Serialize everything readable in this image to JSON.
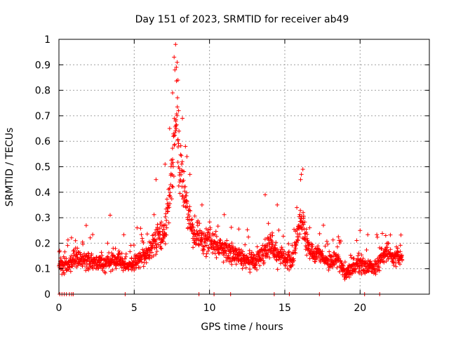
{
  "chart_data": {
    "type": "scatter",
    "title": "Day 151 of 2023, SRMTID for receiver ab49",
    "xlabel": "GPS time / hours",
    "ylabel": "SRMTID / TECUs",
    "xlim": [
      0,
      24.6
    ],
    "ylim": [
      0,
      1
    ],
    "xticks": [
      0,
      5,
      10,
      15,
      20
    ],
    "xtick_labels": [
      "0",
      "5",
      "10",
      "15",
      "20"
    ],
    "yticks": [
      0,
      0.1,
      0.2,
      0.3,
      0.4,
      0.5,
      0.6,
      0.7,
      0.8,
      0.9,
      1
    ],
    "ytick_labels": [
      "0",
      "0.1",
      "0.2",
      "0.3",
      "0.4",
      "0.5",
      "0.6",
      "0.7",
      "0.8",
      "0.9",
      "1"
    ],
    "grid": true,
    "marker": "+",
    "color": "#ff0000",
    "series": [
      {
        "name": "SRMTID",
        "envelope_x": [
          0,
          0.5,
          1,
          2,
          3,
          4,
          4.5,
          5,
          5.5,
          6,
          6.5,
          7,
          7.3,
          7.6,
          7.8,
          8,
          8.3,
          8.6,
          9,
          9.5,
          10,
          10.5,
          11,
          11.5,
          12,
          12.5,
          13,
          13.5,
          14,
          14.5,
          15,
          15.5,
          15.8,
          16.1,
          16.4,
          17,
          17.5,
          18,
          18.5,
          19,
          19.5,
          20,
          20.5,
          21,
          21.5,
          22,
          22.5,
          22.8
        ],
        "envelope_y": [
          0.13,
          0.11,
          0.14,
          0.13,
          0.12,
          0.14,
          0.11,
          0.12,
          0.15,
          0.17,
          0.21,
          0.24,
          0.35,
          0.55,
          0.72,
          0.5,
          0.42,
          0.3,
          0.22,
          0.2,
          0.22,
          0.19,
          0.18,
          0.16,
          0.15,
          0.13,
          0.12,
          0.16,
          0.2,
          0.15,
          0.14,
          0.13,
          0.22,
          0.3,
          0.2,
          0.16,
          0.15,
          0.13,
          0.14,
          0.08,
          0.1,
          0.13,
          0.11,
          0.1,
          0.15,
          0.16,
          0.15,
          0.13
        ],
        "points_count": 1700,
        "highlights": [
          [
            0.05,
            0.17
          ],
          [
            1.1,
            0.21
          ],
          [
            3.4,
            0.31
          ],
          [
            6.45,
            0.45
          ],
          [
            7.05,
            0.51
          ],
          [
            7.35,
            0.65
          ],
          [
            7.55,
            0.79
          ],
          [
            7.65,
            0.93
          ],
          [
            7.75,
            0.98
          ],
          [
            7.85,
            0.91
          ],
          [
            7.8,
            0.89
          ],
          [
            7.9,
            0.84
          ],
          [
            7.95,
            0.72
          ],
          [
            7.7,
            0.88
          ],
          [
            8.2,
            0.69
          ],
          [
            8.4,
            0.58
          ],
          [
            8.5,
            0.54
          ],
          [
            8.7,
            0.47
          ],
          [
            9.5,
            0.35
          ],
          [
            13.7,
            0.39
          ],
          [
            14.5,
            0.35
          ],
          [
            15.8,
            0.34
          ],
          [
            16.1,
            0.47
          ],
          [
            16.2,
            0.49
          ],
          [
            16.05,
            0.45
          ],
          [
            20.0,
            0.25
          ],
          [
            21.7,
            0.23
          ],
          [
            22.5,
            0.18
          ]
        ],
        "zero_marks": [
          0.05,
          0.2,
          0.35,
          0.5,
          0.7,
          0.85,
          0.95,
          4.4,
          9.3,
          10.3,
          11.4,
          14.3,
          15.3,
          17.3,
          20.3,
          21.3
        ]
      }
    ]
  }
}
